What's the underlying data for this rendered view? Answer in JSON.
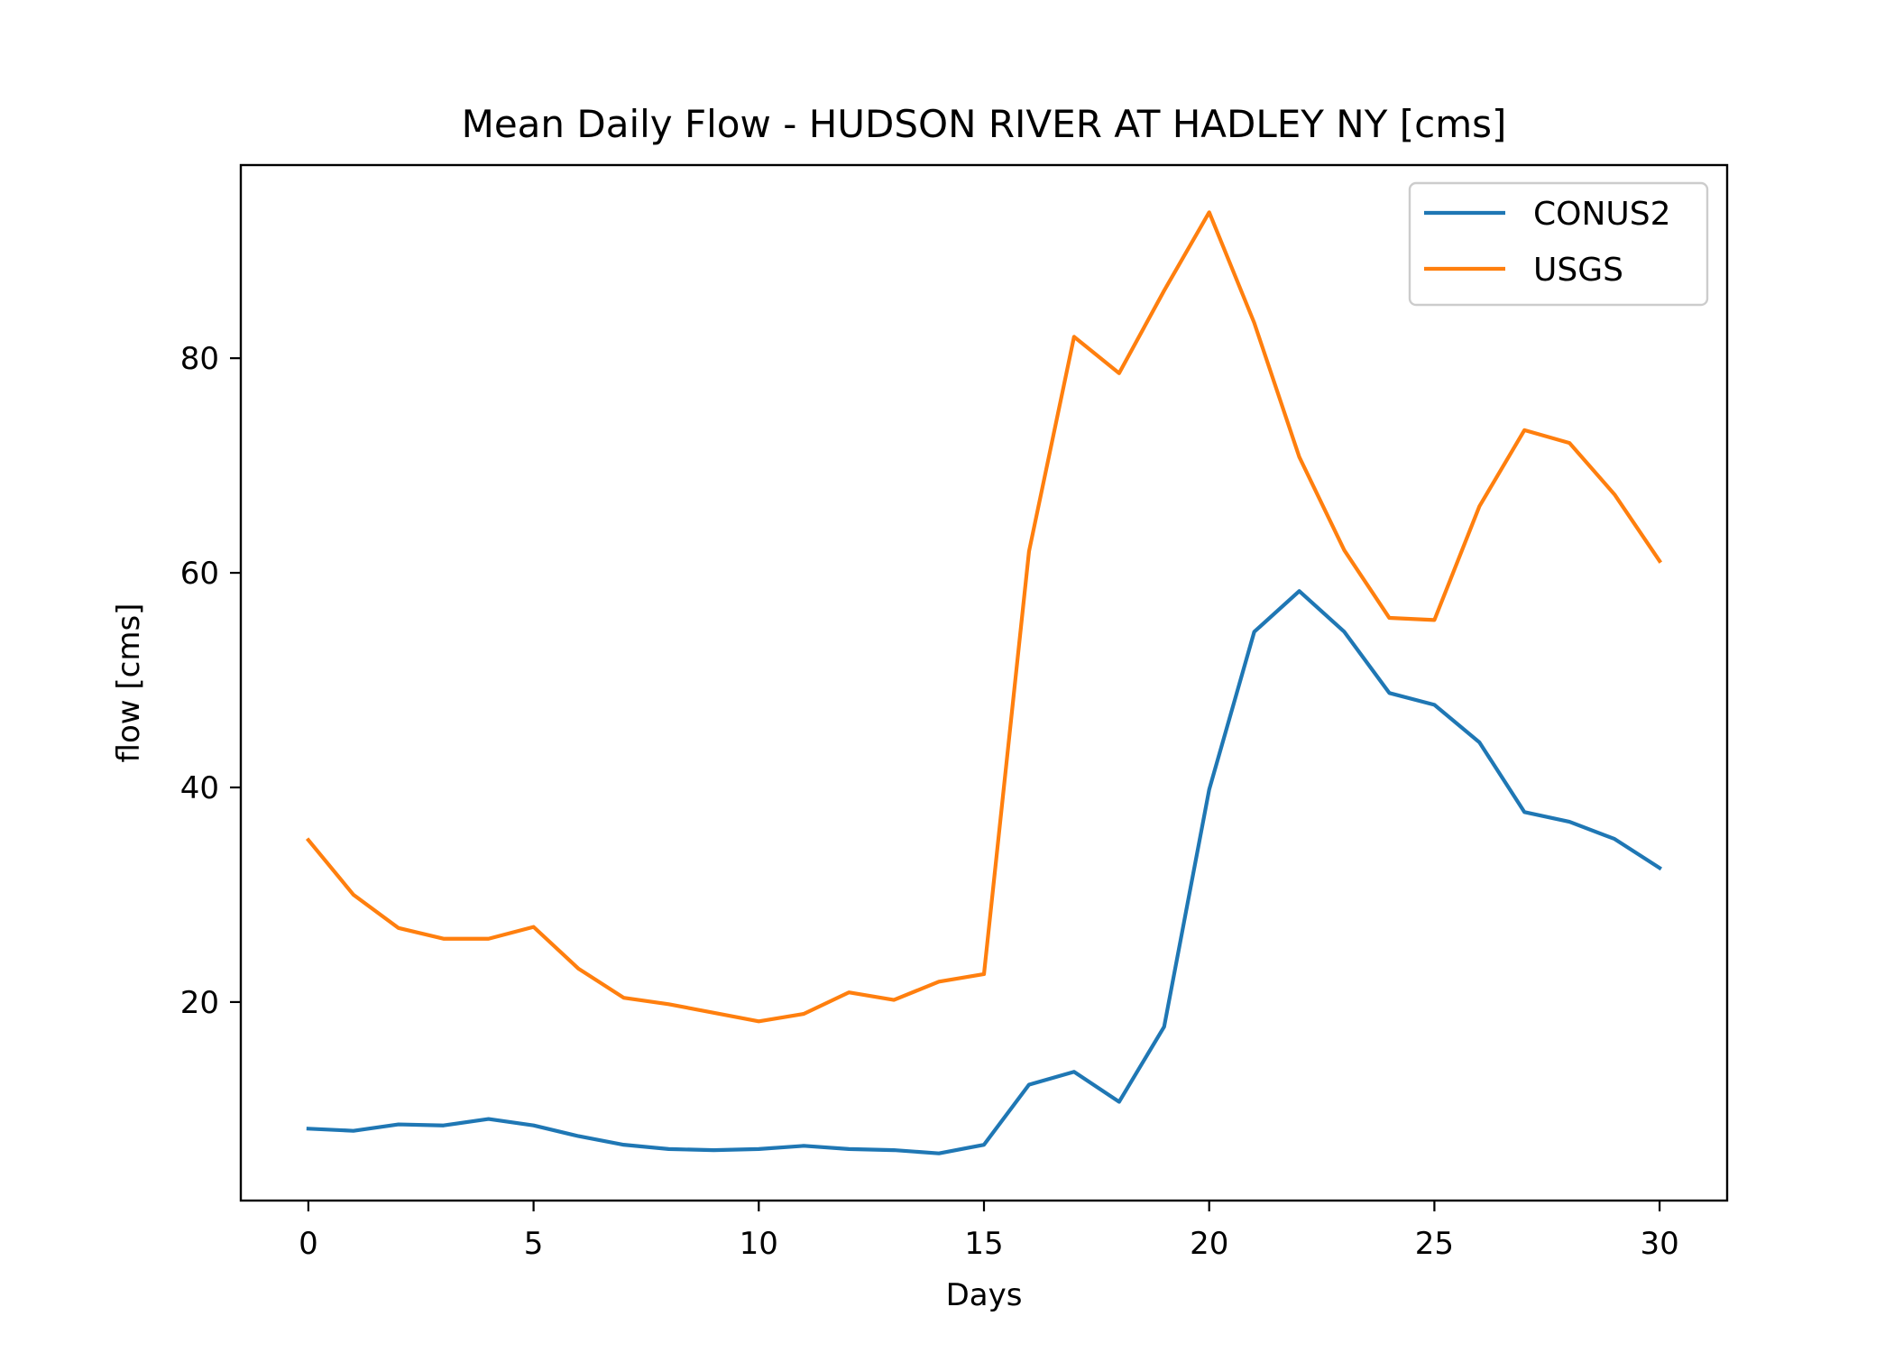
{
  "chart_data": {
    "type": "line",
    "title": "Mean Daily Flow - HUDSON RIVER AT HADLEY NY [cms]",
    "xlabel": "Days",
    "ylabel": "flow [cms]",
    "xlim": [
      -1.5,
      31.5
    ],
    "ylim": [
      1.5,
      98.0
    ],
    "xticks": [
      0,
      5,
      10,
      15,
      20,
      25,
      30
    ],
    "yticks": [
      20,
      40,
      60,
      80
    ],
    "grid": false,
    "legend_position": "top-right",
    "x": [
      0,
      1,
      2,
      3,
      4,
      5,
      6,
      7,
      8,
      9,
      10,
      11,
      12,
      13,
      14,
      15,
      16,
      17,
      18,
      19,
      20,
      21,
      22,
      23,
      24,
      25,
      26,
      27,
      28,
      29,
      30
    ],
    "series": [
      {
        "name": "CONUS2",
        "color": "#1f77b4",
        "values": [
          8.2,
          8.0,
          8.6,
          8.5,
          9.1,
          8.5,
          7.5,
          6.7,
          6.3,
          6.2,
          6.3,
          6.6,
          6.3,
          6.2,
          5.9,
          6.7,
          12.3,
          13.5,
          10.7,
          17.7,
          39.8,
          54.5,
          58.3,
          54.5,
          48.8,
          47.7,
          44.2,
          37.7,
          36.8,
          35.2,
          32.5
        ]
      },
      {
        "name": "USGS",
        "color": "#ff7f0e",
        "values": [
          35.1,
          30.0,
          26.9,
          25.9,
          25.9,
          27.0,
          23.1,
          20.4,
          19.8,
          19.0,
          18.2,
          18.9,
          20.9,
          20.2,
          21.9,
          22.6,
          62.0,
          82.0,
          78.6,
          86.3,
          93.6,
          83.3,
          70.8,
          62.1,
          55.8,
          55.6,
          66.2,
          73.3,
          72.1,
          67.3,
          61.1
        ]
      }
    ]
  }
}
